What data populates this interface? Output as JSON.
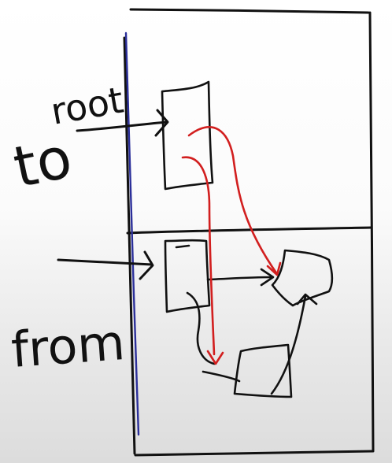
{
  "labels": {
    "root": "root",
    "to": "to",
    "from": "from"
  },
  "colors": {
    "ink": "#111111",
    "pointer_line": "#2b2f9a",
    "reference": "#d21f1f",
    "background": "#ffffff"
  }
}
